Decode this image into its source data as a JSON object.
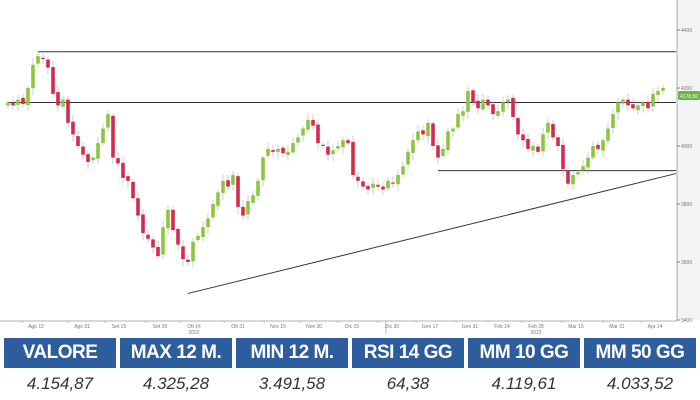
{
  "chart_data": {
    "type": "candlestick",
    "title": "",
    "xlabel": "",
    "ylabel": "",
    "ylim": [
      3400,
      4480
    ],
    "y_ticks": [
      "4400",
      "4200",
      "4000",
      "3800",
      "3600",
      "3400"
    ],
    "x_ticks": [
      "Ago 15",
      "Ago 31",
      "Set 15",
      "Set 30",
      "Ott 14",
      "Ott 31",
      "Nov 15",
      "Nov 30",
      "Dic 15",
      "Dic 30",
      "Gen 17",
      "Gen 31",
      "Feb 14",
      "Feb 28",
      "Mar 15",
      "Mar 31",
      "Apr 14"
    ],
    "year_labels": [
      {
        "label": "2022",
        "under": "Ott 14"
      },
      {
        "label": "2023",
        "under": "Feb 28"
      }
    ],
    "last_price_label": "4178,56",
    "grid": false,
    "colors": {
      "up": "#8cc63f",
      "down": "#d52a4e",
      "lines": "#333333",
      "last_price": "#6db33f"
    },
    "closes": [
      4150,
      4140,
      4160,
      4145,
      4200,
      4280,
      4310,
      4300,
      4270,
      4180,
      4140,
      4160,
      4080,
      4040,
      4000,
      3970,
      3945,
      3960,
      4010,
      4060,
      4110,
      3960,
      3940,
      3890,
      3880,
      3820,
      3760,
      3700,
      3680,
      3650,
      3620,
      3720,
      3780,
      3710,
      3660,
      3610,
      3600,
      3670,
      3690,
      3720,
      3750,
      3800,
      3840,
      3880,
      3860,
      3900,
      3790,
      3760,
      3810,
      3830,
      3880,
      3960,
      3990,
      3980,
      3990,
      3975,
      3980,
      4010,
      4030,
      4060,
      4090,
      4070,
      4010,
      4000,
      3970,
      3985,
      4000,
      4020,
      4010,
      3900,
      3880,
      3860,
      3850,
      3870,
      3860,
      3850,
      3880,
      3870,
      3900,
      3930,
      3980,
      4020,
      4050,
      4040,
      4080,
      4000,
      3960,
      3990,
      4050,
      4060,
      4110,
      4120,
      4190,
      4150,
      4130,
      4160,
      4140,
      4110,
      4120,
      4150,
      4160,
      4100,
      4040,
      4020,
      3990,
      4000,
      3980,
      4040,
      4080,
      4030,
      4000,
      3920,
      3870,
      3900,
      3910,
      3930,
      3960,
      4000,
      3990,
      4020,
      4060,
      4110,
      4150,
      4160,
      4140,
      4130,
      4140,
      4150,
      4130,
      4180,
      4190,
      4200
    ],
    "horizontal_levels": [
      {
        "price": 4325,
        "from_index": 6
      },
      {
        "price": 4150,
        "from_index": 0
      },
      {
        "price": 3915,
        "from_index": 86
      }
    ],
    "trendline": {
      "from_index": 36,
      "from_price": 3491.58,
      "to_price": 3905
    }
  },
  "table": {
    "headers": [
      "VALORE",
      "MAX 12 M.",
      "MIN 12 M.",
      "RSI 14 GG",
      "MM 10 GG",
      "MM 50 GG"
    ],
    "values": [
      "4.154,87",
      "4.325,28",
      "3.491,58",
      "64,38",
      "4.119,61",
      "4.033,52"
    ]
  }
}
